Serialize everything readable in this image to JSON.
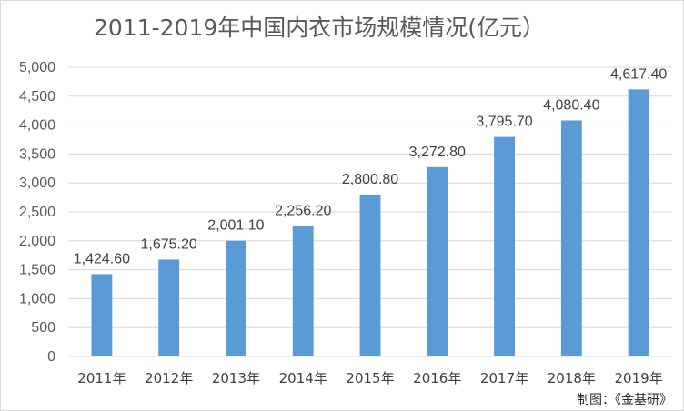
{
  "chart_data": {
    "type": "bar",
    "title": "2011-2019年中国内衣市场规模情况(亿元）",
    "categories": [
      "2011年",
      "2012年",
      "2013年",
      "2014年",
      "2015年",
      "2016年",
      "2017年",
      "2018年",
      "2019年"
    ],
    "values": [
      1424.6,
      1675.2,
      2001.1,
      2256.2,
      2800.8,
      3272.8,
      3795.7,
      4080.4,
      4617.4
    ],
    "data_labels": [
      "1,424.60",
      "1,675.20",
      "2,001.10",
      "2,256.20",
      "2,800.80",
      "3,272.80",
      "3,795.70",
      "4,080.40",
      "4,617.40"
    ],
    "y_ticks": [
      "0",
      "500",
      "1,000",
      "1,500",
      "2,000",
      "2,500",
      "3,000",
      "3,500",
      "4,000",
      "4,500",
      "5,000"
    ],
    "ylim": [
      0,
      5000
    ],
    "xlabel": "",
    "ylabel": "",
    "grid": true,
    "legend": false,
    "bar_color": "#5b9bd5"
  },
  "credit": "制图：《金基研》"
}
